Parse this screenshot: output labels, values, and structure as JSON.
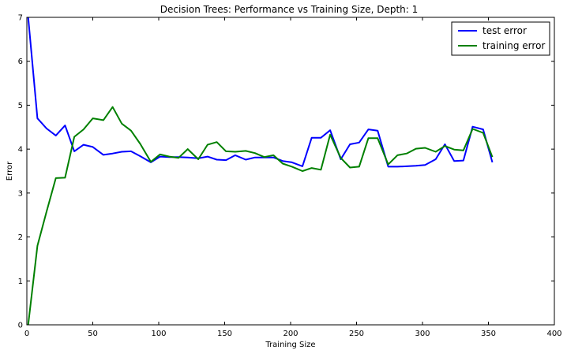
{
  "chart_data": {
    "type": "line",
    "title": "Decision Trees: Performance vs Training Size, Depth: 1",
    "xlabel": "Training Size",
    "ylabel": "Error",
    "xlim": [
      0,
      400
    ],
    "ylim": [
      0,
      7
    ],
    "xticks": [
      0,
      50,
      100,
      150,
      200,
      250,
      300,
      350,
      400
    ],
    "yticks": [
      0,
      1,
      2,
      3,
      4,
      5,
      6,
      7
    ],
    "grid": false,
    "legend_position": "top-right",
    "series": [
      {
        "name": "test error",
        "color": "#0000ff",
        "x": [
          1,
          8,
          15,
          22,
          29,
          36,
          43,
          50,
          58,
          65,
          72,
          79,
          86,
          94,
          101,
          108,
          115,
          122,
          130,
          137,
          144,
          151,
          158,
          166,
          173,
          180,
          187,
          194,
          201,
          209,
          216,
          223,
          230,
          238,
          245,
          252,
          259,
          266,
          274,
          281,
          288,
          295,
          302,
          310,
          317,
          324,
          331,
          338,
          346,
          353
        ],
        "y": [
          7.0,
          4.7,
          4.47,
          4.31,
          4.54,
          3.95,
          4.1,
          4.05,
          3.87,
          3.9,
          3.94,
          3.95,
          3.84,
          3.7,
          3.83,
          3.82,
          3.82,
          3.81,
          3.79,
          3.83,
          3.76,
          3.75,
          3.86,
          3.76,
          3.81,
          3.81,
          3.81,
          3.73,
          3.7,
          3.61,
          4.26,
          4.26,
          4.43,
          3.77,
          4.11,
          4.15,
          4.45,
          4.42,
          3.6,
          3.6,
          3.61,
          3.62,
          3.64,
          3.77,
          4.11,
          3.73,
          3.74,
          4.51,
          4.45,
          3.7
        ]
      },
      {
        "name": "training error",
        "color": "#008000",
        "x": [
          1,
          8,
          15,
          22,
          29,
          36,
          43,
          50,
          58,
          65,
          72,
          79,
          86,
          94,
          101,
          108,
          115,
          122,
          130,
          137,
          144,
          151,
          158,
          166,
          173,
          180,
          187,
          194,
          201,
          209,
          216,
          223,
          230,
          238,
          245,
          252,
          259,
          266,
          274,
          281,
          288,
          295,
          302,
          310,
          317,
          324,
          331,
          338,
          346,
          353
        ],
        "y": [
          0.0,
          1.8,
          2.58,
          3.34,
          3.35,
          4.28,
          4.45,
          4.7,
          4.66,
          4.96,
          4.58,
          4.42,
          4.12,
          3.71,
          3.88,
          3.83,
          3.8,
          4.0,
          3.77,
          4.1,
          4.16,
          3.95,
          3.94,
          3.96,
          3.91,
          3.82,
          3.86,
          3.67,
          3.6,
          3.5,
          3.57,
          3.53,
          4.33,
          3.8,
          3.58,
          3.6,
          4.25,
          4.25,
          3.65,
          3.86,
          3.9,
          4.01,
          4.03,
          3.94,
          4.07,
          3.99,
          3.97,
          4.46,
          4.37,
          3.82
        ]
      }
    ]
  }
}
